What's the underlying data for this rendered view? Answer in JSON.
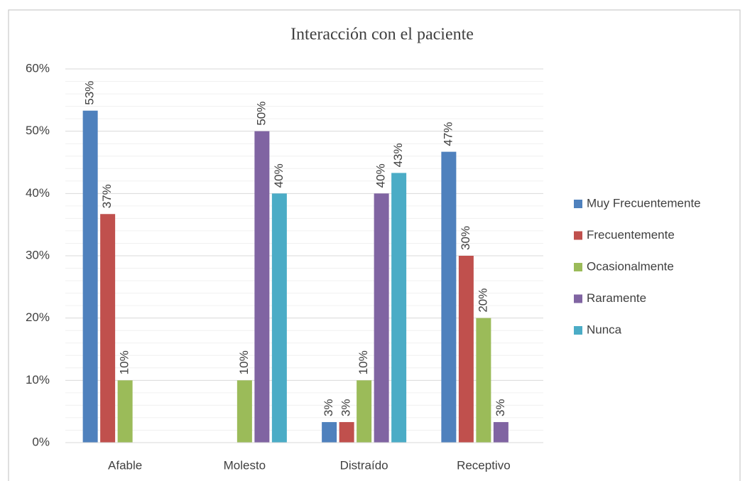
{
  "chart_data": {
    "type": "bar",
    "title": "Interacción con el paciente",
    "categories": [
      "Afable",
      "Molesto",
      "Distraído",
      "Receptivo"
    ],
    "series": [
      {
        "name": "Muy Frecuentemente",
        "color": "#4f81bd",
        "values": [
          53.3,
          null,
          3.3,
          46.7
        ],
        "value_labels": [
          "53%",
          null,
          "3%",
          "47%"
        ]
      },
      {
        "name": "Frecuentemente",
        "color": "#c0504d",
        "values": [
          36.7,
          null,
          3.3,
          30
        ],
        "value_labels": [
          "37%",
          null,
          "3%",
          "30%"
        ]
      },
      {
        "name": "Ocasionalmente",
        "color": "#9bbb59",
        "values": [
          10,
          10,
          10,
          20
        ],
        "value_labels": [
          "10%",
          "10%",
          "10%",
          "20%"
        ]
      },
      {
        "name": "Raramente",
        "color": "#8064a2",
        "values": [
          null,
          50,
          40,
          3.3
        ],
        "value_labels": [
          null,
          "50%",
          "40%",
          "3%"
        ]
      },
      {
        "name": "Nunca",
        "color": "#4bacc6",
        "values": [
          null,
          40,
          43.3,
          null
        ],
        "value_labels": [
          null,
          "40%",
          "43%",
          null
        ]
      }
    ],
    "ylim": [
      0,
      60
    ],
    "yticks": [
      {
        "value": 0,
        "label": "0%"
      },
      {
        "value": 10,
        "label": "10%"
      },
      {
        "value": 20,
        "label": "20%"
      },
      {
        "value": 30,
        "label": "30%"
      },
      {
        "value": 40,
        "label": "40%"
      },
      {
        "value": 50,
        "label": "50%"
      },
      {
        "value": 60,
        "label": "60%"
      }
    ],
    "minor_yticks": [
      2,
      4,
      6,
      8,
      12,
      14,
      16,
      18,
      22,
      24,
      26,
      28,
      32,
      34,
      36,
      38,
      42,
      44,
      46,
      48,
      52,
      54,
      56,
      58
    ],
    "grid": true,
    "legend": "right"
  }
}
